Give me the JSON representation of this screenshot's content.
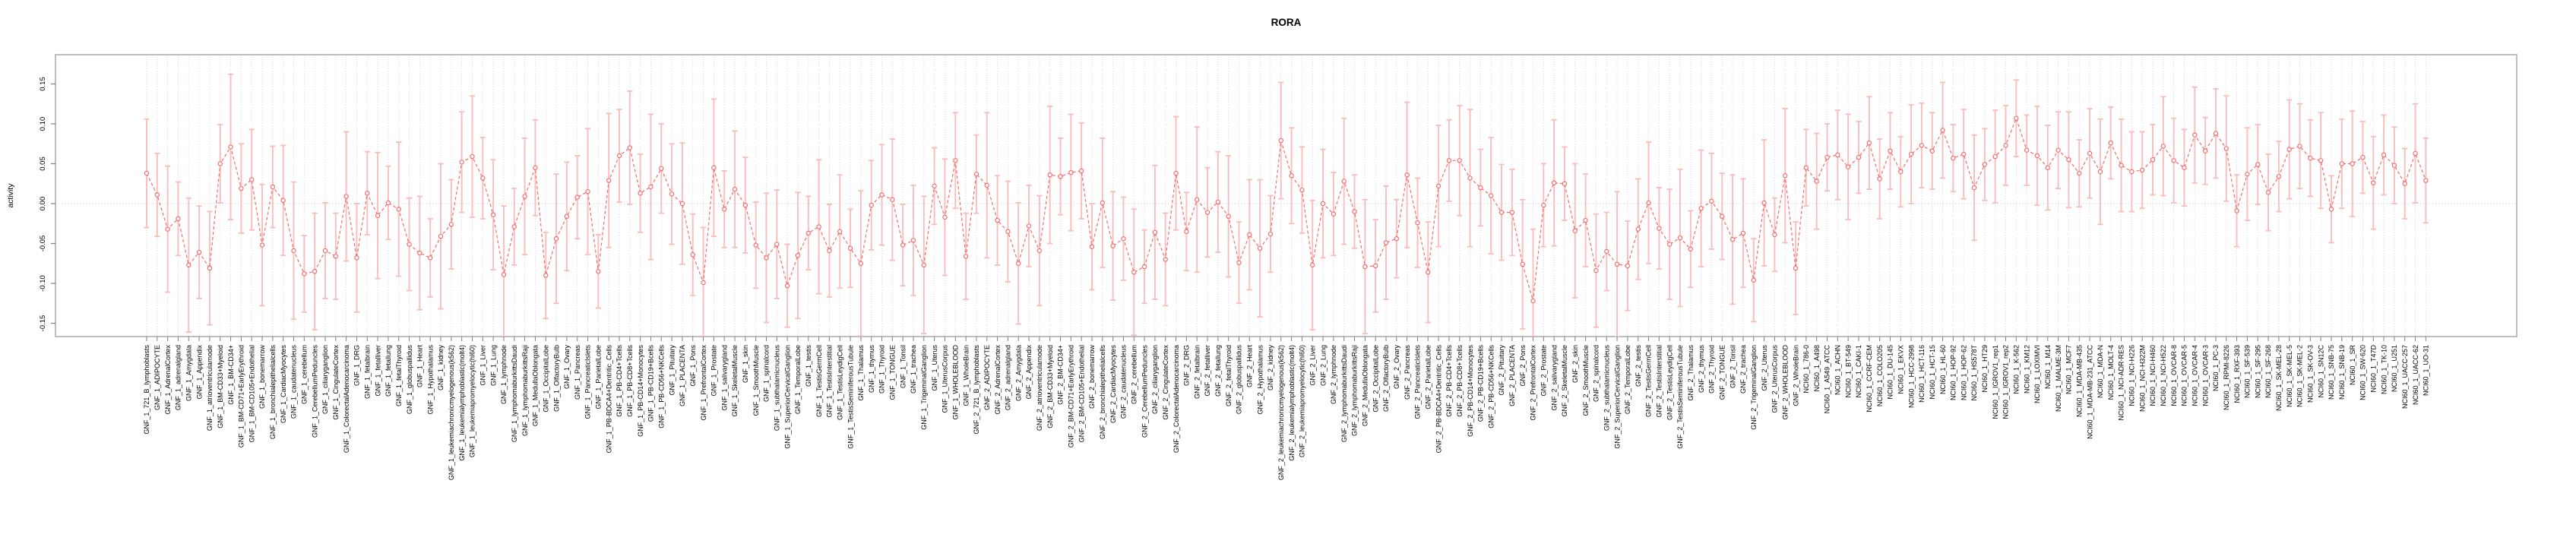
{
  "chart_data": {
    "type": "line",
    "title": "RORA",
    "ylabel": "activity",
    "xlabel": "",
    "legend": "none",
    "grid": "vertical dotted gridline per category, dotted horizontal zero line",
    "marker": "open-circle with error bars, points connected by dashed line",
    "ylim": [
      -0.167,
      0.187
    ],
    "yticks": [
      0.15,
      0.1,
      0.05,
      0.0,
      -0.05,
      -0.1,
      -0.15
    ],
    "ytick_labels": [
      "0.15",
      "0.10",
      "0.05",
      "0.00",
      "-0.05",
      "-0.10",
      "-0.15"
    ],
    "colors": {
      "point_line": "#f86a6a",
      "error_bar": "#f9bdbd",
      "grid": "#d9d9d9",
      "zero_line": "#c9c9c9",
      "box": "#a9a9a9",
      "tick": "#808080",
      "text": "#000000",
      "background": "#ffffff"
    },
    "gnf_tissue_names": [
      "721_B_lymphoblasts",
      "ADIPOCYTE",
      "AdrenalCortex",
      "adrenalgland",
      "Amygdala",
      "Appendix",
      "atrioventricularnode",
      "BM-CD33+Myeloid",
      "BM-CD34+",
      "BM-CD71+EarlyErythroid",
      "BM-CD105+Endothelial",
      "bonemarrow",
      "bronchialepithelialcells",
      "CardiacMyocytes",
      "caudatenucleus",
      "cerebellum",
      "CerebellumPeduncles",
      "ciliaryganglion",
      "CingulateCortex",
      "ColorectalAdenocarcinoma",
      "DRG",
      "fetalbrain",
      "fetalliver",
      "fetallung",
      "fetalThyroid",
      "globuspallidus",
      "Heart",
      "Hypothalamus",
      "kidney",
      "leukemiachronicmyelogenous(k562)",
      "leukemialymphoblastic(molt4)",
      "leukemiapromyelocytic(hl60)",
      "Liver",
      "Lung",
      "lymphnode",
      "lymphomaburkittsDaudi",
      "lymphomaburkittsRaji",
      "MedullaOblongata",
      "OccipitalLobe",
      "OlfactoryBulb",
      "Ovary",
      "Pancreas",
      "PancreaticIslets",
      "ParietalLobe",
      "PB-BDCA4+Dentritic_Cells",
      "PB-CD4+Tcells",
      "PB-CD8+Tcells",
      "PB-CD14+Monocytes",
      "PB-CD19+Bcells",
      "PB-CD56+NKCells",
      "Pituitary",
      "PLACENTA",
      "Pons",
      "PrefrontalCortex",
      "Prostate",
      "salivarygland",
      "SkeletalMuscle",
      "skin",
      "SmoothMuscle",
      "spinalcord",
      "subthalamicnucleus",
      "SuperiorCervicalGanglion",
      "TemporalLobe",
      "testis",
      "TestisGermCell",
      "TestisInterstitial",
      "TestisLeydigCell",
      "TestisSeminiferousTubule",
      "Thalamus",
      "thymus",
      "Thyroid",
      "TONGUE",
      "Tonsil",
      "trachea",
      "TrigeminalGanglion",
      "Uterus",
      "UterusCorpus",
      "WHOLEBLOOD",
      "WholeBrain"
    ],
    "nci60_cell_line_names": [
      "786-0",
      "A498",
      "A549_ATCC",
      "ACHN",
      "BT-549",
      "CAKI-1",
      "CCRF-CEM",
      "COLO205",
      "DU-145",
      "EKVX",
      "HCC-2998",
      "HCT-116",
      "HCT-15",
      "HL-60",
      "HOP-92",
      "HOP-62",
      "HS578T",
      "HT29",
      "IGROV1_rep1",
      "IGROV1_rep2",
      "K-562",
      "KM12",
      "LOXIMVI",
      "M14",
      "MALME-3M",
      "MCF7",
      "MDA-MB-435",
      "MDA-MB-231_ATCC",
      "MDA-N",
      "MOLT-4",
      "NCI-ADR-RES",
      "NCI-H226",
      "NCI-H322M",
      "NCI-H460",
      "NCI-H522",
      "OVCAR-8",
      "OVCAR-5",
      "OVCAR-4",
      "OVCAR-3",
      "PC-3",
      "RPMI-8226",
      "RXF-393",
      "SF-539",
      "SF-295",
      "SF-268",
      "SK-MEL-28",
      "SK-MEL-5",
      "SK-MEL-2",
      "SK-OV-3",
      "SN12C",
      "SNB-75",
      "SNB-19",
      "SR",
      "SW-620",
      "T47D",
      "TK-10",
      "U251",
      "UACC-257",
      "UACC-62",
      "UO-31"
    ],
    "groups": [
      {
        "prefix": "GNF_1_",
        "names_key": "gnf_tissue_names",
        "values": [
          0.038,
          0.011,
          -0.032,
          -0.019,
          -0.077,
          -0.061,
          -0.081,
          0.05,
          0.071,
          0.019,
          0.03,
          -0.052,
          0.021,
          0.004,
          -0.059,
          -0.088,
          -0.085,
          -0.059,
          -0.066,
          0.009,
          -0.068,
          0.013,
          -0.015,
          0.001,
          -0.007,
          -0.051,
          -0.062,
          -0.068,
          -0.041,
          -0.026,
          0.052,
          0.059,
          0.032,
          -0.014,
          -0.089,
          -0.029,
          0.009,
          0.045,
          -0.09,
          -0.044,
          -0.016,
          0.008,
          0.015,
          -0.085,
          0.029,
          0.06,
          0.07,
          0.013,
          0.021,
          0.044,
          0.012,
          0.0,
          -0.064,
          -0.099,
          0.045,
          -0.007,
          0.018,
          -0.002,
          -0.052,
          -0.068,
          -0.051,
          -0.103,
          -0.065,
          -0.037,
          -0.029,
          -0.059,
          -0.035,
          -0.056,
          -0.075,
          -0.002,
          0.011,
          0.005,
          -0.052,
          -0.046,
          -0.077,
          0.022,
          -0.017,
          0.054,
          -0.066
        ],
        "errors": [
          0.068,
          0.052,
          0.079,
          0.046,
          0.084,
          0.058,
          0.071,
          0.049,
          0.091,
          0.056,
          0.063,
          0.076,
          0.051,
          0.069,
          0.086,
          0.048,
          0.073,
          0.06,
          0.054,
          0.081,
          0.068,
          0.052,
          0.079,
          0.046,
          0.084,
          0.058,
          0.071,
          0.049,
          0.091,
          0.056,
          0.063,
          0.076,
          0.051,
          0.069,
          0.086,
          0.048,
          0.073,
          0.06,
          0.054,
          0.081,
          0.068,
          0.052,
          0.079,
          0.046,
          0.084,
          0.058,
          0.071,
          0.049,
          0.091,
          0.056,
          0.063,
          0.076,
          0.051,
          0.069,
          0.086,
          0.048,
          0.073,
          0.06,
          0.054,
          0.081,
          0.068,
          0.052,
          0.079,
          0.046,
          0.084,
          0.058,
          0.071,
          0.049,
          0.091,
          0.056,
          0.063,
          0.076,
          0.051,
          0.069,
          0.086,
          0.048,
          0.073,
          0.06,
          0.054
        ]
      },
      {
        "prefix": "GNF_2_",
        "names_key": "gnf_tissue_names",
        "values": [
          0.037,
          0.023,
          -0.021,
          -0.035,
          -0.075,
          -0.028,
          -0.059,
          0.036,
          0.034,
          0.039,
          0.041,
          -0.054,
          0.001,
          -0.053,
          -0.044,
          -0.086,
          -0.079,
          -0.036,
          -0.07,
          0.038,
          -0.035,
          0.005,
          -0.011,
          0.002,
          -0.016,
          -0.074,
          -0.039,
          -0.056,
          -0.038,
          0.079,
          0.035,
          0.017,
          -0.077,
          0.0,
          -0.013,
          0.028,
          -0.01,
          -0.079,
          -0.078,
          -0.049,
          -0.044,
          0.036,
          -0.024,
          -0.086,
          0.022,
          0.054,
          0.054,
          0.032,
          0.02,
          0.01,
          -0.011,
          -0.011,
          -0.076,
          -0.122,
          -0.002,
          0.026,
          0.025,
          -0.034,
          -0.021,
          -0.084,
          -0.06,
          -0.076,
          -0.078,
          -0.032,
          0.001,
          -0.031,
          -0.051,
          -0.043,
          -0.057,
          -0.006,
          0.003,
          -0.016,
          -0.045,
          -0.037,
          -0.096,
          0.001,
          -0.039,
          0.035,
          -0.081
        ],
        "errors": [
          0.049,
          0.091,
          0.056,
          0.063,
          0.076,
          0.051,
          0.069,
          0.086,
          0.048,
          0.073,
          0.06,
          0.054,
          0.081,
          0.068,
          0.052,
          0.079,
          0.046,
          0.084,
          0.058,
          0.071,
          0.049,
          0.091,
          0.056,
          0.063,
          0.076,
          0.051,
          0.069,
          0.086,
          0.048,
          0.073,
          0.06,
          0.054,
          0.081,
          0.068,
          0.052,
          0.079,
          0.046,
          0.084,
          0.058,
          0.071,
          0.049,
          0.091,
          0.056,
          0.063,
          0.076,
          0.051,
          0.069,
          0.086,
          0.048,
          0.073,
          0.06,
          0.054,
          0.081,
          0.09,
          0.052,
          0.079,
          0.046,
          0.084,
          0.058,
          0.071,
          0.049,
          0.091,
          0.056,
          0.063,
          0.076,
          0.051,
          0.069,
          0.086,
          0.048,
          0.073,
          0.06,
          0.054,
          0.081,
          0.068,
          0.052,
          0.079,
          0.046,
          0.084,
          0.058
        ]
      },
      {
        "prefix": "NCI60_1_",
        "names_key": "nci60_cell_line_names",
        "values": [
          0.045,
          0.028,
          0.058,
          0.061,
          0.046,
          0.058,
          0.076,
          0.031,
          0.066,
          0.04,
          0.062,
          0.073,
          0.066,
          0.092,
          0.057,
          0.062,
          0.02,
          0.049,
          0.059,
          0.073,
          0.107,
          0.067,
          0.06,
          0.045,
          0.067,
          0.055,
          0.038,
          0.063,
          0.04,
          0.076,
          0.048,
          0.04,
          0.042,
          0.055,
          0.072,
          0.054,
          0.045,
          0.086,
          0.066,
          0.088,
          0.069,
          -0.009,
          0.037,
          0.049,
          0.014,
          0.034,
          0.068,
          0.072,
          0.057,
          0.054,
          -0.007,
          0.05,
          0.05,
          0.058,
          0.026,
          0.061,
          0.048,
          0.025,
          0.063,
          0.029
        ],
        "errors": [
          0.048,
          0.06,
          0.042,
          0.056,
          0.066,
          0.045,
          0.058,
          0.05,
          0.048,
          0.044,
          0.062,
          0.053,
          0.048,
          0.06,
          0.042,
          0.056,
          0.066,
          0.045,
          0.058,
          0.05,
          0.048,
          0.044,
          0.062,
          0.053,
          0.048,
          0.06,
          0.042,
          0.056,
          0.066,
          0.045,
          0.058,
          0.05,
          0.048,
          0.044,
          0.062,
          0.053,
          0.048,
          0.06,
          0.042,
          0.056,
          0.066,
          0.045,
          0.058,
          0.05,
          0.048,
          0.044,
          0.062,
          0.053,
          0.048,
          0.06,
          0.042,
          0.056,
          0.066,
          0.045,
          0.058,
          0.05,
          0.048,
          0.044,
          0.062,
          0.053
        ]
      }
    ]
  }
}
